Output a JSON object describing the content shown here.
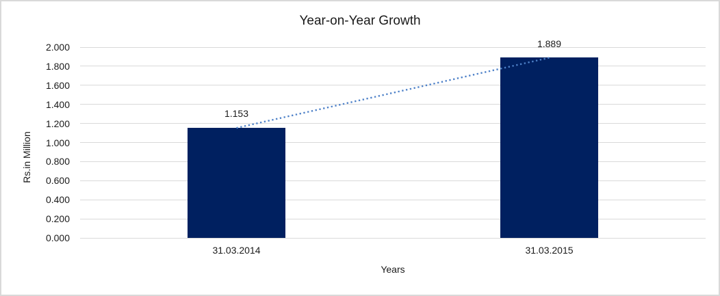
{
  "window": {
    "background_color": "#ffffff",
    "border_color": "#d9d9d9"
  },
  "chart_data": {
    "type": "bar",
    "title": "Year-on-Year Growth",
    "categories": [
      "31.03.2014",
      "31.03.2015"
    ],
    "values": [
      1.153,
      1.889
    ],
    "data_labels": [
      "1.153",
      "1.889"
    ],
    "xlabel": "Years",
    "ylabel": "Rs.in Million",
    "ylim": [
      0.0,
      2.0
    ],
    "ytick_interval": 0.2,
    "ytick_labels": [
      "0.000",
      "0.200",
      "0.400",
      "0.600",
      "0.800",
      "1.000",
      "1.200",
      "1.400",
      "1.600",
      "1.800",
      "2.000"
    ],
    "grid": true,
    "legend": "none",
    "bar_color": "#002060",
    "gridline_color": "#d9d9d9",
    "text_color": "#1a1a1a",
    "trendline": {
      "type": "linear",
      "style": "dotted",
      "color": "#4e81c8"
    }
  }
}
